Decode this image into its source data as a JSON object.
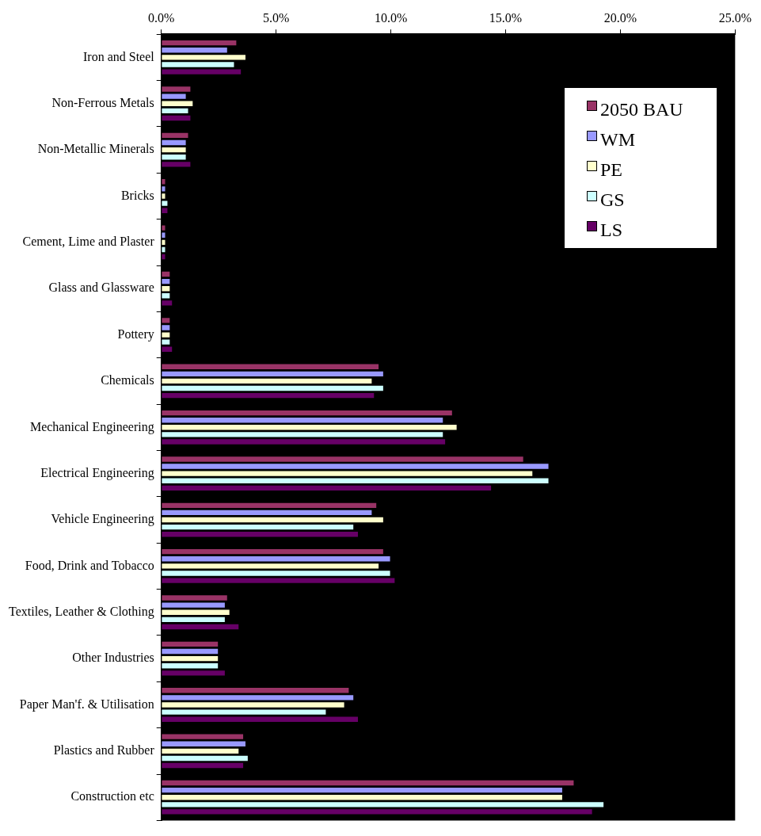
{
  "chart_data": {
    "type": "bar",
    "orientation": "horizontal",
    "legend": "top right",
    "grid": false,
    "categories": [
      "Iron and Steel",
      "Non-Ferrous Metals",
      "Non-Metallic Minerals",
      "Bricks",
      "Cement, Lime and Plaster",
      "Glass and Glassware",
      "Pottery",
      "Chemicals",
      "Mechanical Engineering",
      "Electrical Engineering",
      "Vehicle Engineering",
      "Food, Drink and Tobacco",
      "Textiles, Leather & Clothing",
      "Other Industries",
      "Paper Man'f. & Utilisation",
      "Plastics and Rubber",
      "Construction etc"
    ],
    "xlim": [
      0,
      25
    ],
    "xticks": [
      {
        "value": 0,
        "label": "0.0%"
      },
      {
        "value": 5,
        "label": "5.0%"
      },
      {
        "value": 10,
        "label": "10.0%"
      },
      {
        "value": 15,
        "label": "15.0%"
      },
      {
        "value": 20,
        "label": "20.0%"
      },
      {
        "value": 25,
        "label": "25.0%"
      }
    ],
    "series": [
      {
        "name": "2050 BAU",
        "color": "#993366",
        "values": [
          3.3,
          1.3,
          1.2,
          0.2,
          0.2,
          0.4,
          0.4,
          9.5,
          12.7,
          15.8,
          9.4,
          9.7,
          2.9,
          2.5,
          8.2,
          3.6,
          18.0
        ]
      },
      {
        "name": "WM",
        "color": "#9999ff",
        "values": [
          2.9,
          1.1,
          1.1,
          0.2,
          0.2,
          0.4,
          0.4,
          9.7,
          12.3,
          16.9,
          9.2,
          10.0,
          2.8,
          2.5,
          8.4,
          3.7,
          17.5
        ]
      },
      {
        "name": "PE",
        "color": "#ffffcc",
        "values": [
          3.7,
          1.4,
          1.1,
          0.2,
          0.2,
          0.4,
          0.4,
          9.2,
          12.9,
          16.2,
          9.7,
          9.5,
          3.0,
          2.5,
          8.0,
          3.4,
          17.5
        ]
      },
      {
        "name": "GS",
        "color": "#ccffff",
        "values": [
          3.2,
          1.2,
          1.1,
          0.3,
          0.2,
          0.4,
          0.4,
          9.7,
          12.3,
          16.9,
          8.4,
          10.0,
          2.8,
          2.5,
          7.2,
          3.8,
          19.3
        ]
      },
      {
        "name": "LS",
        "color": "#660066",
        "values": [
          3.5,
          1.3,
          1.3,
          0.3,
          0.2,
          0.5,
          0.5,
          9.3,
          12.4,
          14.4,
          8.6,
          10.2,
          3.4,
          2.8,
          8.6,
          3.6,
          18.8
        ]
      }
    ]
  }
}
